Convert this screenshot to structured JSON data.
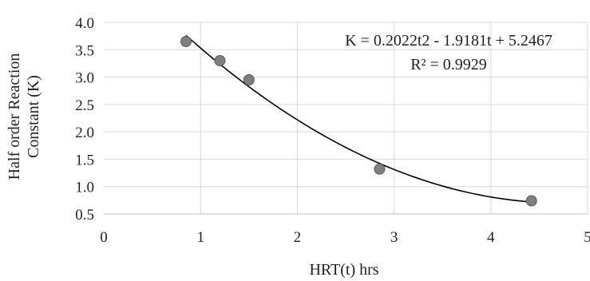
{
  "chart_data": {
    "type": "scatter",
    "title": "",
    "xlabel": "HRT(t) hrs",
    "ylabel_lines": [
      "Half order Reaction",
      "Constant (K)"
    ],
    "xlim": [
      0,
      5
    ],
    "ylim": [
      0.5,
      4.0
    ],
    "x_ticks": [
      "0",
      "1",
      "2",
      "3",
      "4",
      "5"
    ],
    "y_ticks": [
      "0.5",
      "1.0",
      "1.5",
      "2.0",
      "2.5",
      "3.0",
      "3.5",
      "4.0"
    ],
    "grid": true,
    "series": [
      {
        "points": [
          {
            "x": 0.85,
            "y": 3.65
          },
          {
            "x": 1.2,
            "y": 3.3
          },
          {
            "x": 1.5,
            "y": 2.95
          },
          {
            "x": 2.85,
            "y": 1.32
          },
          {
            "x": 4.42,
            "y": 0.74
          }
        ]
      }
    ],
    "trendline": {
      "type": "polynomial",
      "coefficients": [
        0.2022,
        -1.9181,
        5.2467
      ],
      "x_range": [
        0.85,
        4.42
      ]
    },
    "annotations": [
      "K = 0.2022t2 - 1.9181t + 5.2467",
      "R² = 0.9929"
    ]
  }
}
